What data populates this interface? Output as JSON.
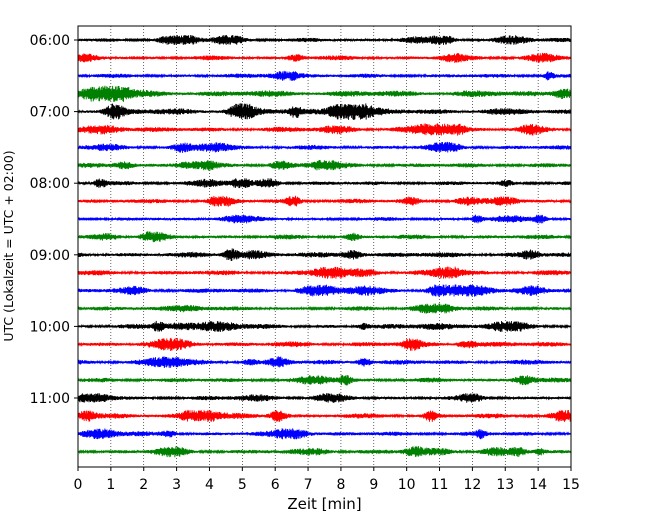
{
  "chart_data": {
    "type": "line",
    "xlabel": "Zeit  [min]",
    "ylabel": "UTC (Lokalzeit = UTC + 02:00)",
    "xlim": [
      0,
      15
    ],
    "x_ticks": [
      0,
      1,
      2,
      3,
      4,
      5,
      6,
      7,
      8,
      9,
      10,
      11,
      12,
      13,
      14,
      15
    ],
    "y_ticks": [
      "06:00",
      "07:00",
      "08:00",
      "09:00",
      "10:00",
      "11:00"
    ],
    "grid": "vertical-dotted",
    "row_start": "06:00",
    "row_interval_minutes": 15,
    "row_count": 24,
    "series_colors": [
      "#000000",
      "#ff0000",
      "#0000ff",
      "#008000"
    ],
    "rows": [
      {
        "start": "06:00",
        "color": "#000000",
        "amplitude": 0.45
      },
      {
        "start": "06:15",
        "color": "#ff0000",
        "amplitude": 0.5
      },
      {
        "start": "06:30",
        "color": "#0000ff",
        "amplitude": 0.45
      },
      {
        "start": "06:45",
        "color": "#008000",
        "amplitude": 0.75
      },
      {
        "start": "07:00",
        "color": "#000000",
        "amplitude": 0.75
      },
      {
        "start": "07:15",
        "color": "#ff0000",
        "amplitude": 0.55
      },
      {
        "start": "07:30",
        "color": "#0000ff",
        "amplitude": 0.5
      },
      {
        "start": "07:45",
        "color": "#008000",
        "amplitude": 0.5
      },
      {
        "start": "08:00",
        "color": "#000000",
        "amplitude": 0.45
      },
      {
        "start": "08:15",
        "color": "#ff0000",
        "amplitude": 0.5
      },
      {
        "start": "08:30",
        "color": "#0000ff",
        "amplitude": 0.4
      },
      {
        "start": "08:45",
        "color": "#008000",
        "amplitude": 0.5
      },
      {
        "start": "09:00",
        "color": "#000000",
        "amplitude": 0.6
      },
      {
        "start": "09:15",
        "color": "#ff0000",
        "amplitude": 0.55
      },
      {
        "start": "09:30",
        "color": "#0000ff",
        "amplitude": 0.55
      },
      {
        "start": "09:45",
        "color": "#008000",
        "amplitude": 0.45
      },
      {
        "start": "10:00",
        "color": "#000000",
        "amplitude": 0.5
      },
      {
        "start": "10:15",
        "color": "#ff0000",
        "amplitude": 0.6
      },
      {
        "start": "10:30",
        "color": "#0000ff",
        "amplitude": 0.55
      },
      {
        "start": "10:45",
        "color": "#008000",
        "amplitude": 0.5
      },
      {
        "start": "11:00",
        "color": "#000000",
        "amplitude": 0.45
      },
      {
        "start": "11:15",
        "color": "#ff0000",
        "amplitude": 0.55
      },
      {
        "start": "11:30",
        "color": "#0000ff",
        "amplitude": 0.5
      },
      {
        "start": "11:45",
        "color": "#008000",
        "amplitude": 0.5
      }
    ]
  }
}
